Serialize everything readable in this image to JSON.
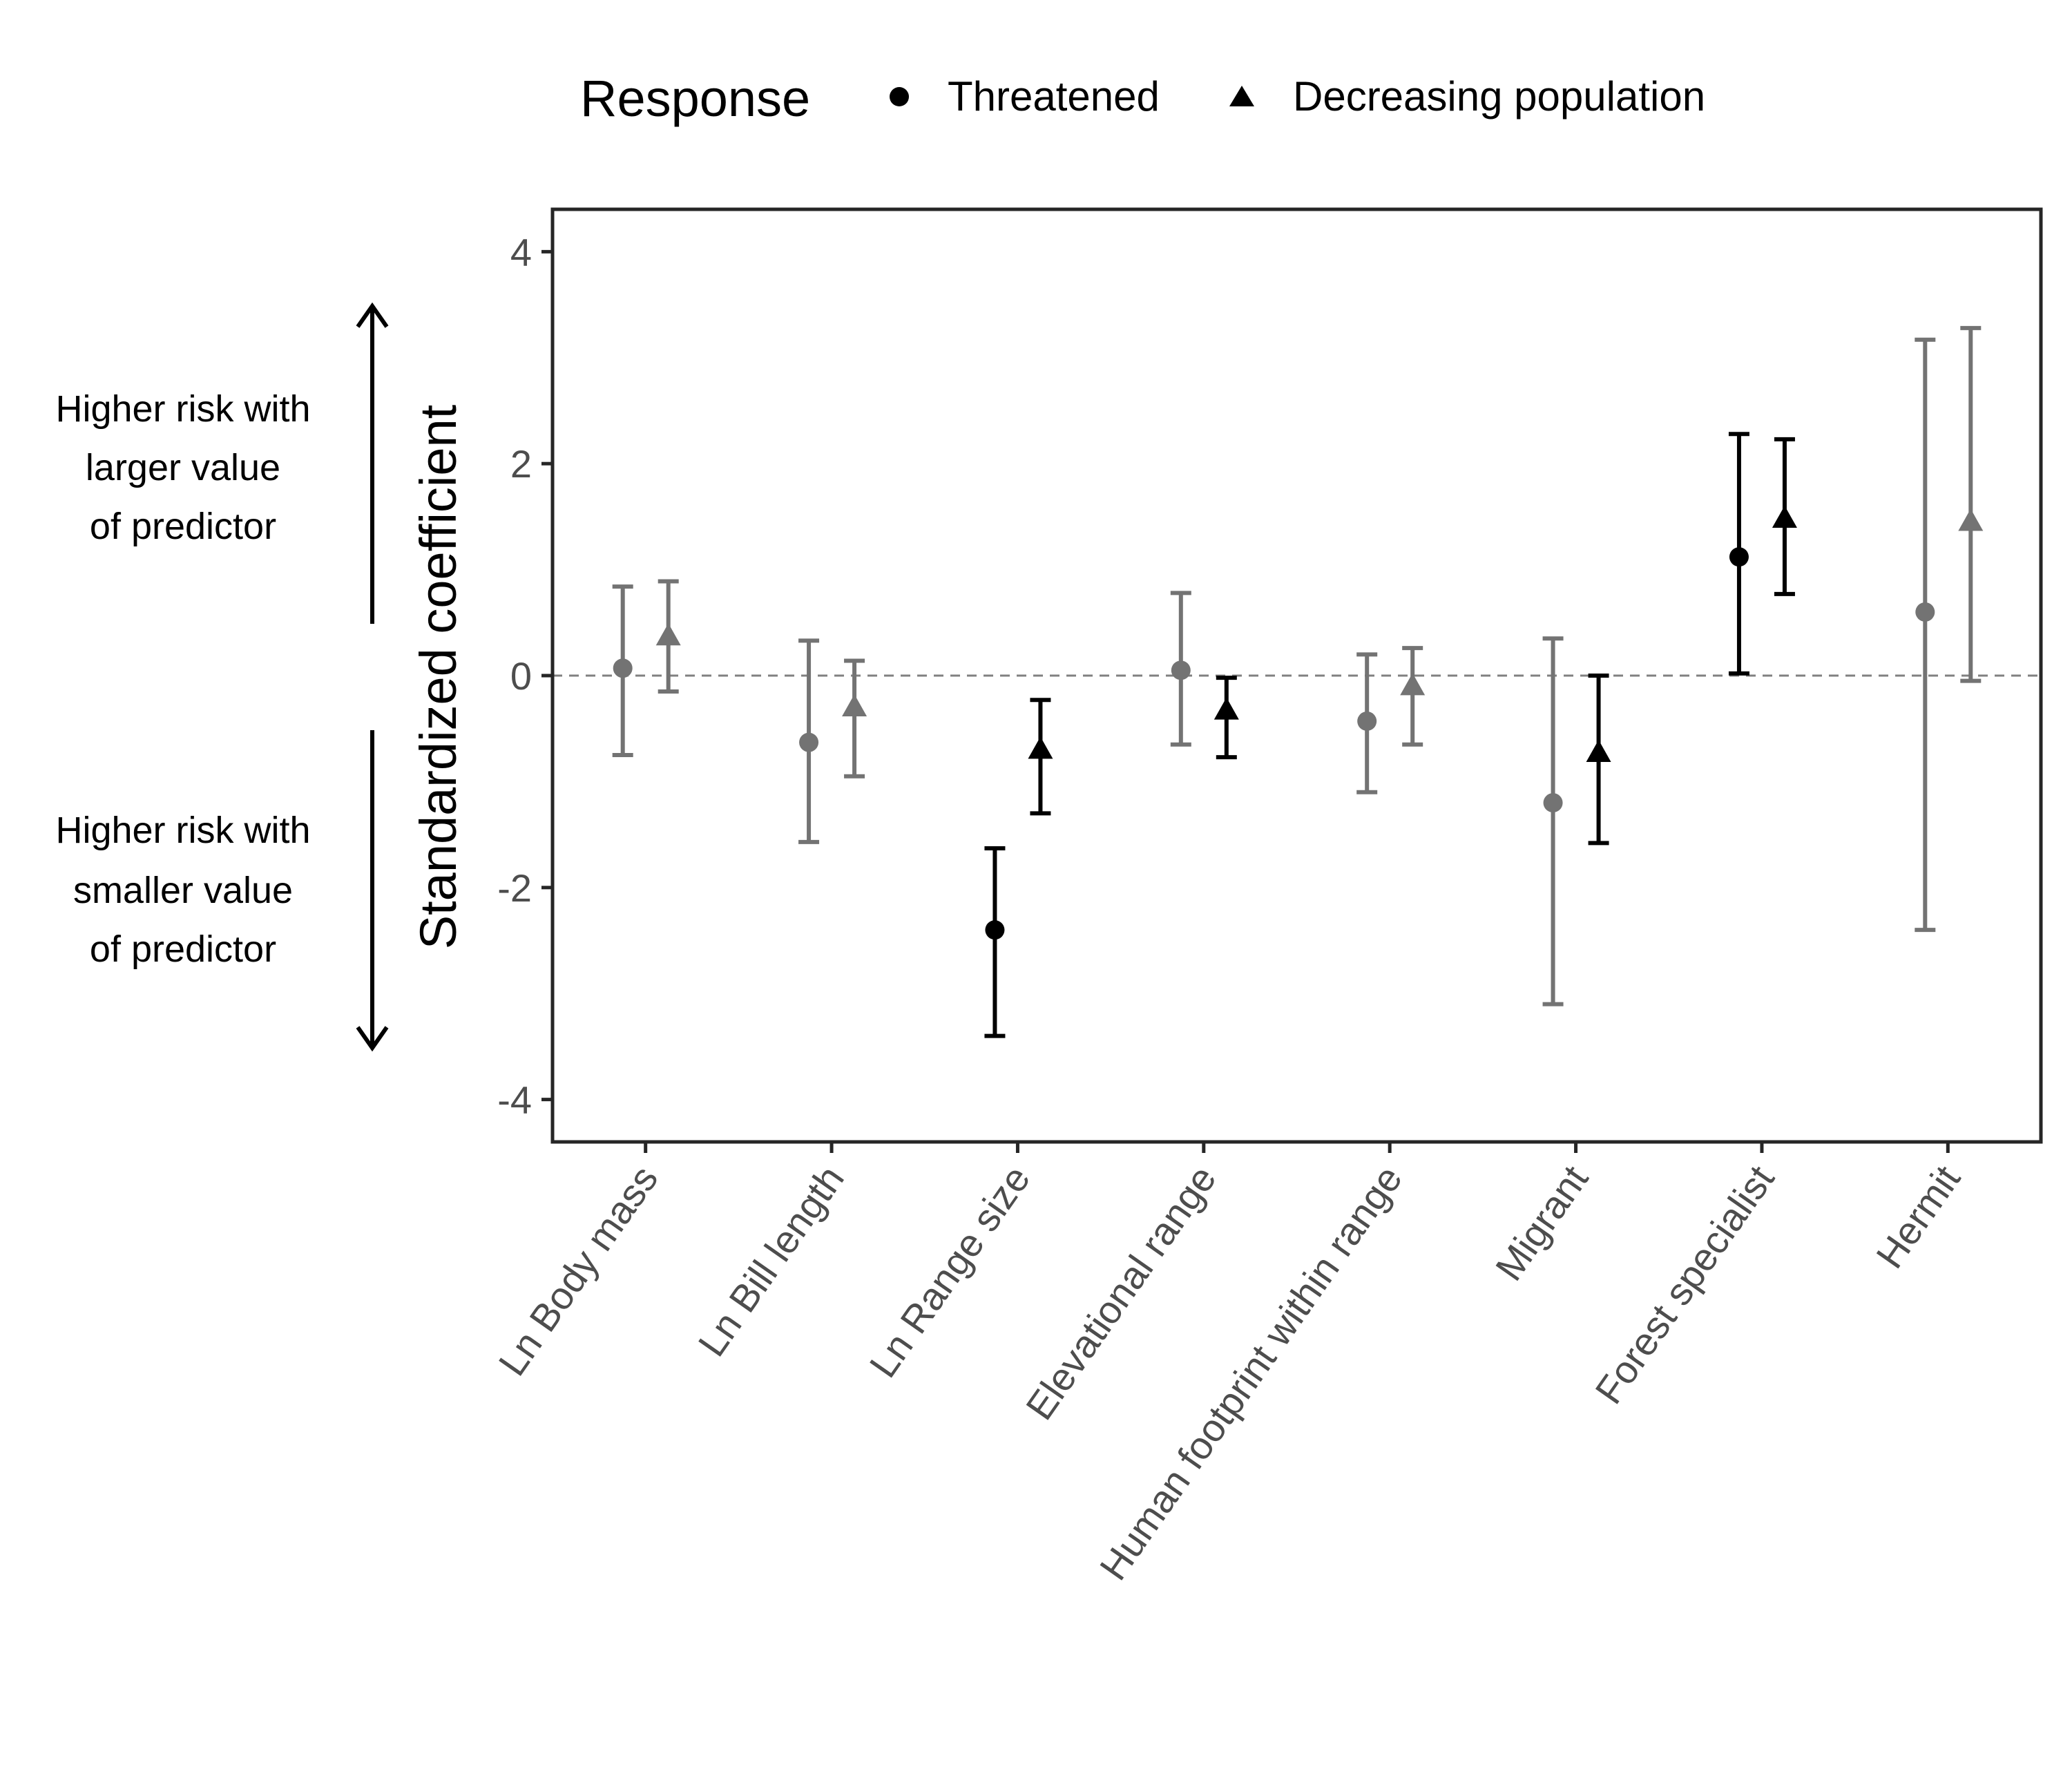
{
  "chart_data": {
    "type": "scatter",
    "legend": {
      "title": "Response",
      "placement": "top",
      "entries": [
        {
          "label": "Threatened",
          "marker": "circle"
        },
        {
          "label": "Decreasing population",
          "marker": "triangle"
        }
      ]
    },
    "xlabel": "",
    "ylabel": "Standardized coefficient",
    "ylim": [
      -4.4,
      4.4
    ],
    "yticks": [
      -4,
      -2,
      0,
      2,
      4
    ],
    "ytick_labels": [
      "-4",
      "-2",
      "0",
      "2",
      "4"
    ],
    "reference_line": 0,
    "grid": false,
    "categories": [
      "Ln Body mass",
      "Ln Bill length",
      "Ln Range size",
      "Elevational range",
      "Human footprint within range",
      "Migrant",
      "Forest specialist",
      "Hermit"
    ],
    "series": [
      {
        "name": "Threatened",
        "marker": "circle",
        "values": [
          0.07,
          -0.63,
          -2.4,
          0.05,
          -0.43,
          -1.2,
          1.12,
          0.6
        ],
        "lower": [
          -0.75,
          -1.57,
          -3.4,
          -0.65,
          -1.1,
          -3.1,
          0.02,
          -2.4
        ],
        "upper": [
          0.84,
          0.33,
          -1.63,
          0.78,
          0.2,
          0.35,
          2.28,
          3.17
        ],
        "significant": [
          false,
          false,
          true,
          false,
          false,
          false,
          true,
          false
        ]
      },
      {
        "name": "Decreasing population",
        "marker": "triangle",
        "values": [
          0.37,
          -0.3,
          -0.7,
          -0.33,
          -0.1,
          -0.73,
          1.48,
          1.45
        ],
        "lower": [
          -0.15,
          -0.95,
          -1.3,
          -0.77,
          -0.65,
          -1.58,
          0.77,
          -0.05
        ],
        "upper": [
          0.89,
          0.14,
          -0.23,
          -0.02,
          0.26,
          0.0,
          2.23,
          3.28
        ],
        "significant": [
          false,
          false,
          true,
          true,
          false,
          true,
          true,
          false
        ]
      }
    ],
    "annotations": {
      "upper": [
        "Higher risk with",
        "larger value",
        "of predictor"
      ],
      "lower": [
        "Higher risk with",
        "smaller value",
        "of predictor"
      ]
    },
    "colors": {
      "significant": "#000000",
      "nonsignificant": "#737373",
      "axis": "#262626",
      "tick_label": "#4d4d4d",
      "reference_line": "#808080"
    }
  }
}
